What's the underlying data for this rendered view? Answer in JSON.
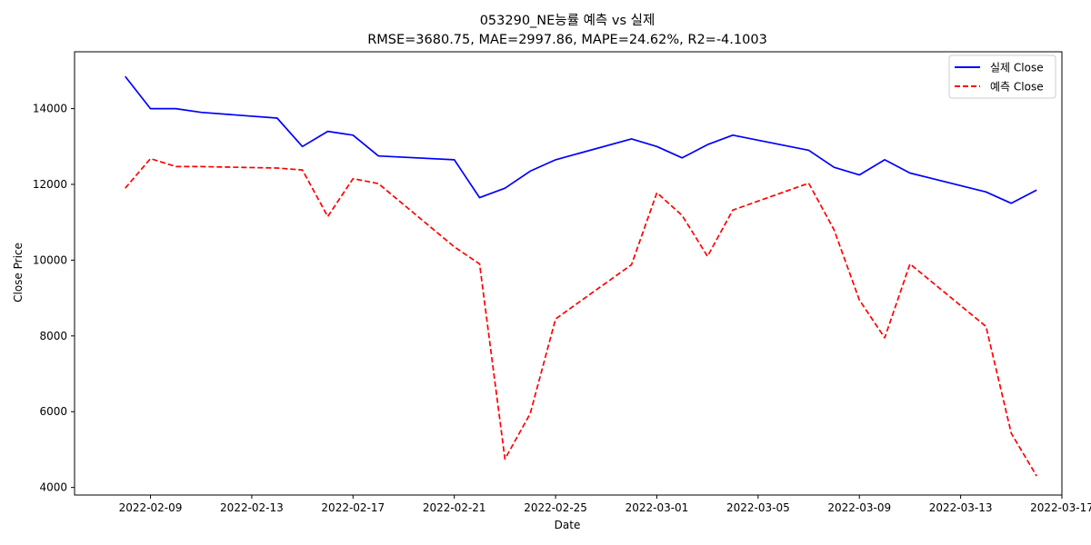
{
  "chart_data": {
    "type": "line",
    "title": "053290_NE능률 예측 vs 실제",
    "subtitle": "RMSE=3680.75, MAE=2997.86, MAPE=24.62%, R2=-4.1003",
    "xlabel": "Date",
    "ylabel": "Close Price",
    "ylim": [
      3800,
      15500
    ],
    "xlim": [
      "2022-02-06",
      "2022-03-17"
    ],
    "x_ticks": [
      "2022-02-09",
      "2022-02-13",
      "2022-02-17",
      "2022-02-21",
      "2022-02-25",
      "2022-03-01",
      "2022-03-05",
      "2022-03-09",
      "2022-03-13",
      "2022-03-17"
    ],
    "y_ticks": [
      4000,
      6000,
      8000,
      10000,
      12000,
      14000
    ],
    "grid": false,
    "legend_position": "top-right",
    "x": [
      "2022-02-08",
      "2022-02-09",
      "2022-02-10",
      "2022-02-11",
      "2022-02-14",
      "2022-02-15",
      "2022-02-16",
      "2022-02-17",
      "2022-02-18",
      "2022-02-21",
      "2022-02-22",
      "2022-02-23",
      "2022-02-24",
      "2022-02-25",
      "2022-02-28",
      "2022-03-01",
      "2022-03-02",
      "2022-03-03",
      "2022-03-04",
      "2022-03-07",
      "2022-03-08",
      "2022-03-09",
      "2022-03-10",
      "2022-03-11",
      "2022-03-14",
      "2022-03-15",
      "2022-03-16"
    ],
    "series": [
      {
        "name": "실제 Close",
        "color": "#0000ff",
        "style": "solid",
        "values": [
          14850,
          14000,
          14000,
          13900,
          13750,
          13000,
          13400,
          13300,
          12750,
          12650,
          11650,
          11900,
          12350,
          12650,
          13200,
          13000,
          12700,
          13050,
          13300,
          12900,
          12450,
          12250,
          12650,
          12300,
          11800,
          11500,
          11850
        ]
      },
      {
        "name": "예측 Close",
        "color": "#ff0000",
        "style": "dashed",
        "values": [
          11900,
          12680,
          12470,
          12470,
          12430,
          12380,
          11150,
          12150,
          12020,
          10350,
          9900,
          4750,
          5950,
          8450,
          9880,
          11780,
          11180,
          10100,
          11320,
          12030,
          10800,
          8950,
          7950,
          9900,
          8250,
          5430,
          4300
        ]
      }
    ]
  }
}
